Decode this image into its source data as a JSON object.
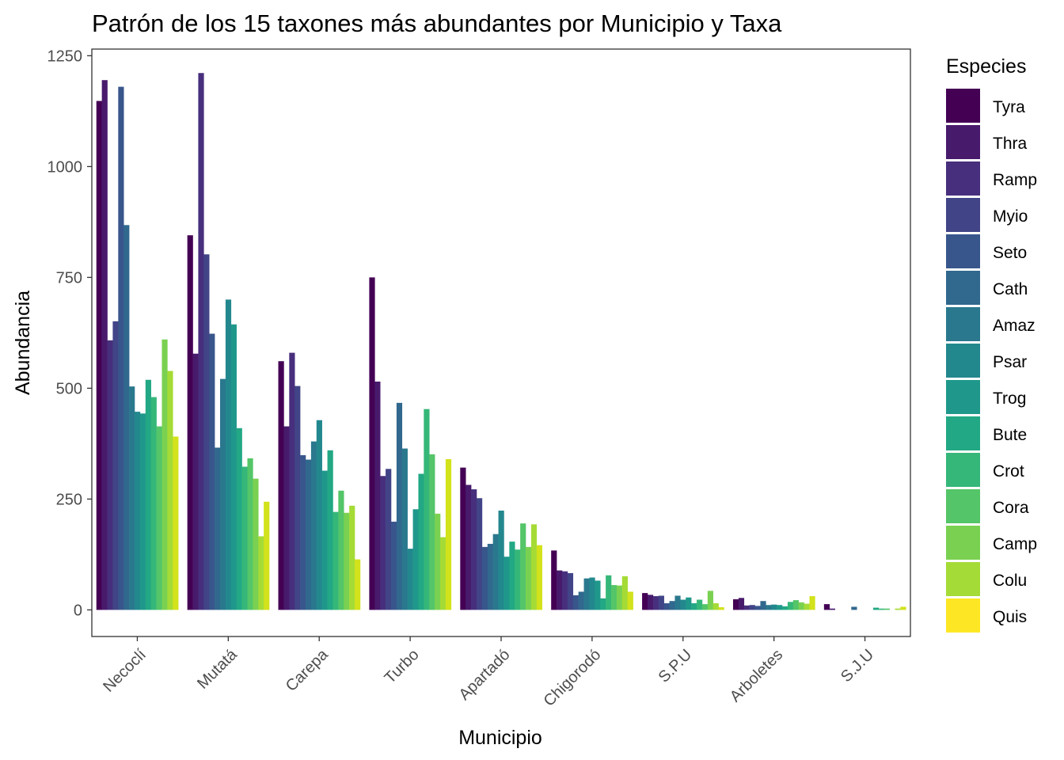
{
  "chart_data": {
    "type": "bar",
    "title": "Patrón de los 15 taxones más abundantes por Municipio y Taxa",
    "xlabel": "Municipio",
    "ylabel": "Abundancia",
    "ylim": [
      -60,
      1265
    ],
    "yticks": [
      0,
      250,
      500,
      750,
      1000,
      1250
    ],
    "grid": false,
    "legend": {
      "title": "Especies",
      "position": "right"
    },
    "categories": [
      "Necoclí",
      "Mutatá",
      "Carepa",
      "Turbo",
      "Apartadó",
      "Chigorodó",
      "S.P.U",
      "Arboletes",
      "S.J.U"
    ],
    "series": [
      {
        "name": "Tyra",
        "color": "#440154",
        "values": [
          1148,
          845,
          561,
          750,
          321,
          134,
          38,
          24,
          13
        ]
      },
      {
        "name": "Thra",
        "color": "#481a6c",
        "values": [
          1195,
          578,
          414,
          515,
          282,
          89,
          34,
          27,
          3
        ]
      },
      {
        "name": "Ramp",
        "color": "#472f7d",
        "values": [
          608,
          1211,
          580,
          302,
          272,
          87,
          31,
          10,
          0
        ]
      },
      {
        "name": "Myio",
        "color": "#414487",
        "values": [
          651,
          802,
          505,
          318,
          252,
          83,
          32,
          11,
          0
        ]
      },
      {
        "name": "Seto",
        "color": "#39568c",
        "values": [
          1180,
          623,
          349,
          199,
          142,
          33,
          15,
          9,
          0
        ]
      },
      {
        "name": "Cath",
        "color": "#31688e",
        "values": [
          868,
          366,
          339,
          467,
          149,
          41,
          20,
          20,
          7
        ]
      },
      {
        "name": "Amaz",
        "color": "#2a788e",
        "values": [
          504,
          521,
          380,
          364,
          171,
          71,
          32,
          11,
          0
        ]
      },
      {
        "name": "Psar",
        "color": "#23888e",
        "values": [
          447,
          700,
          428,
          138,
          224,
          73,
          23,
          12,
          0
        ]
      },
      {
        "name": "Trog",
        "color": "#1f988b",
        "values": [
          443,
          644,
          314,
          227,
          120,
          66,
          28,
          11,
          0
        ]
      },
      {
        "name": "Bute",
        "color": "#22a884",
        "values": [
          519,
          410,
          360,
          307,
          154,
          26,
          15,
          8,
          5
        ]
      },
      {
        "name": "Crot",
        "color": "#35b779",
        "values": [
          480,
          323,
          221,
          453,
          136,
          78,
          23,
          18,
          3
        ]
      },
      {
        "name": "Cora",
        "color": "#54c568",
        "values": [
          414,
          342,
          269,
          351,
          195,
          56,
          13,
          22,
          3
        ]
      },
      {
        "name": "Camp",
        "color": "#7ad151",
        "values": [
          610,
          296,
          219,
          217,
          142,
          55,
          43,
          17,
          0
        ]
      },
      {
        "name": "Colu",
        "color": "#a5db36",
        "values": [
          539,
          166,
          235,
          164,
          193,
          76,
          15,
          14,
          3
        ]
      },
      {
        "name": "Quis",
        "color": "#d2e21b",
        "values": [
          391,
          244,
          114,
          340,
          146,
          41,
          6,
          31,
          7
        ]
      }
    ],
    "extra_legend_color": "#fde725",
    "legend_order": [
      "Tyra",
      "Thra",
      "Ramp",
      "Myio",
      "Seto",
      "Cath",
      "Amaz",
      "Psar",
      "Trog",
      "Bute",
      "Crot",
      "Cora",
      "Camp",
      "Colu",
      "Quis"
    ]
  }
}
